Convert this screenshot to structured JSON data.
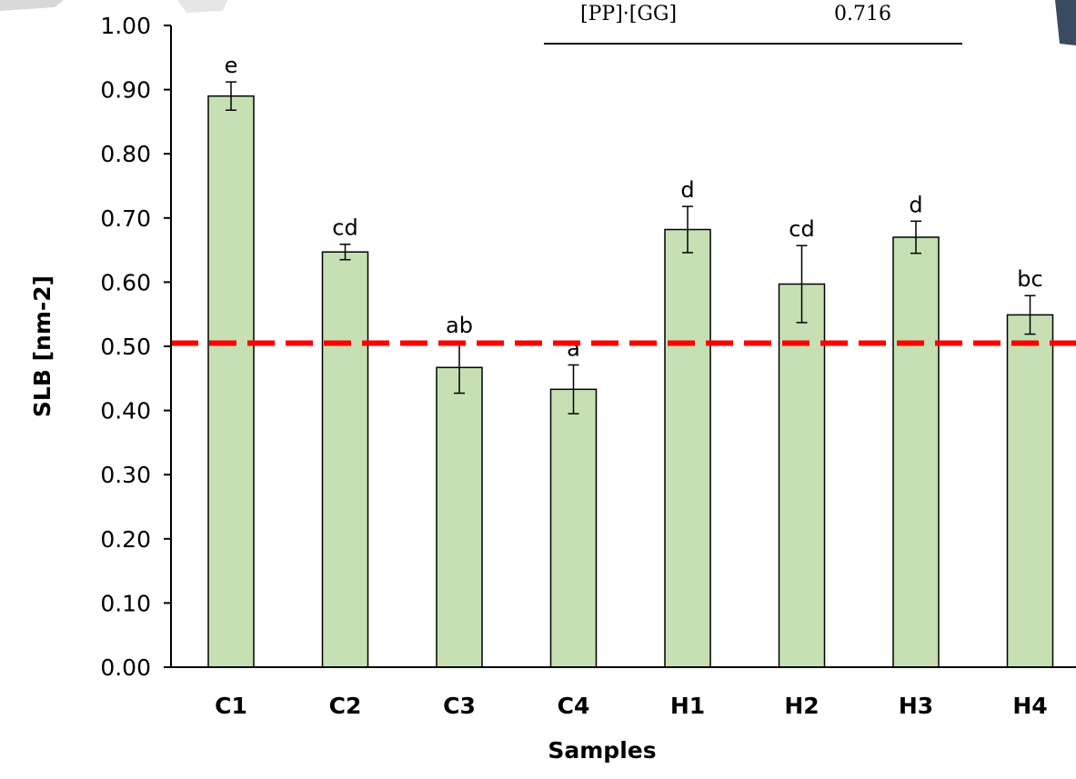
{
  "inset": {
    "label": "[PP]·[GG]",
    "value": "0.716"
  },
  "chart_data": {
    "type": "bar",
    "categories": [
      "C1",
      "C2",
      "C3",
      "C4",
      "H1",
      "H2",
      "H3",
      "H4"
    ],
    "values": [
      0.89,
      0.647,
      0.467,
      0.433,
      0.682,
      0.597,
      0.67,
      0.549
    ],
    "errors": [
      0.022,
      0.012,
      0.04,
      0.038,
      0.036,
      0.06,
      0.025,
      0.03
    ],
    "significance": [
      "e",
      "cd",
      "ab",
      "a",
      "d",
      "cd",
      "d",
      "bc"
    ],
    "xlabel": "Samples",
    "ylabel": "SLB [nm-2]",
    "ylim": [
      0,
      1.0
    ],
    "yticks": [
      "0.00",
      "0.10",
      "0.20",
      "0.30",
      "0.40",
      "0.50",
      "0.60",
      "0.70",
      "0.80",
      "0.90",
      "1.00"
    ],
    "reference_line": 0.505,
    "bar_color": "#c6e0b4",
    "bar_edge_color": "#000000",
    "reference_line_color": "#ff0000",
    "grid": false
  }
}
